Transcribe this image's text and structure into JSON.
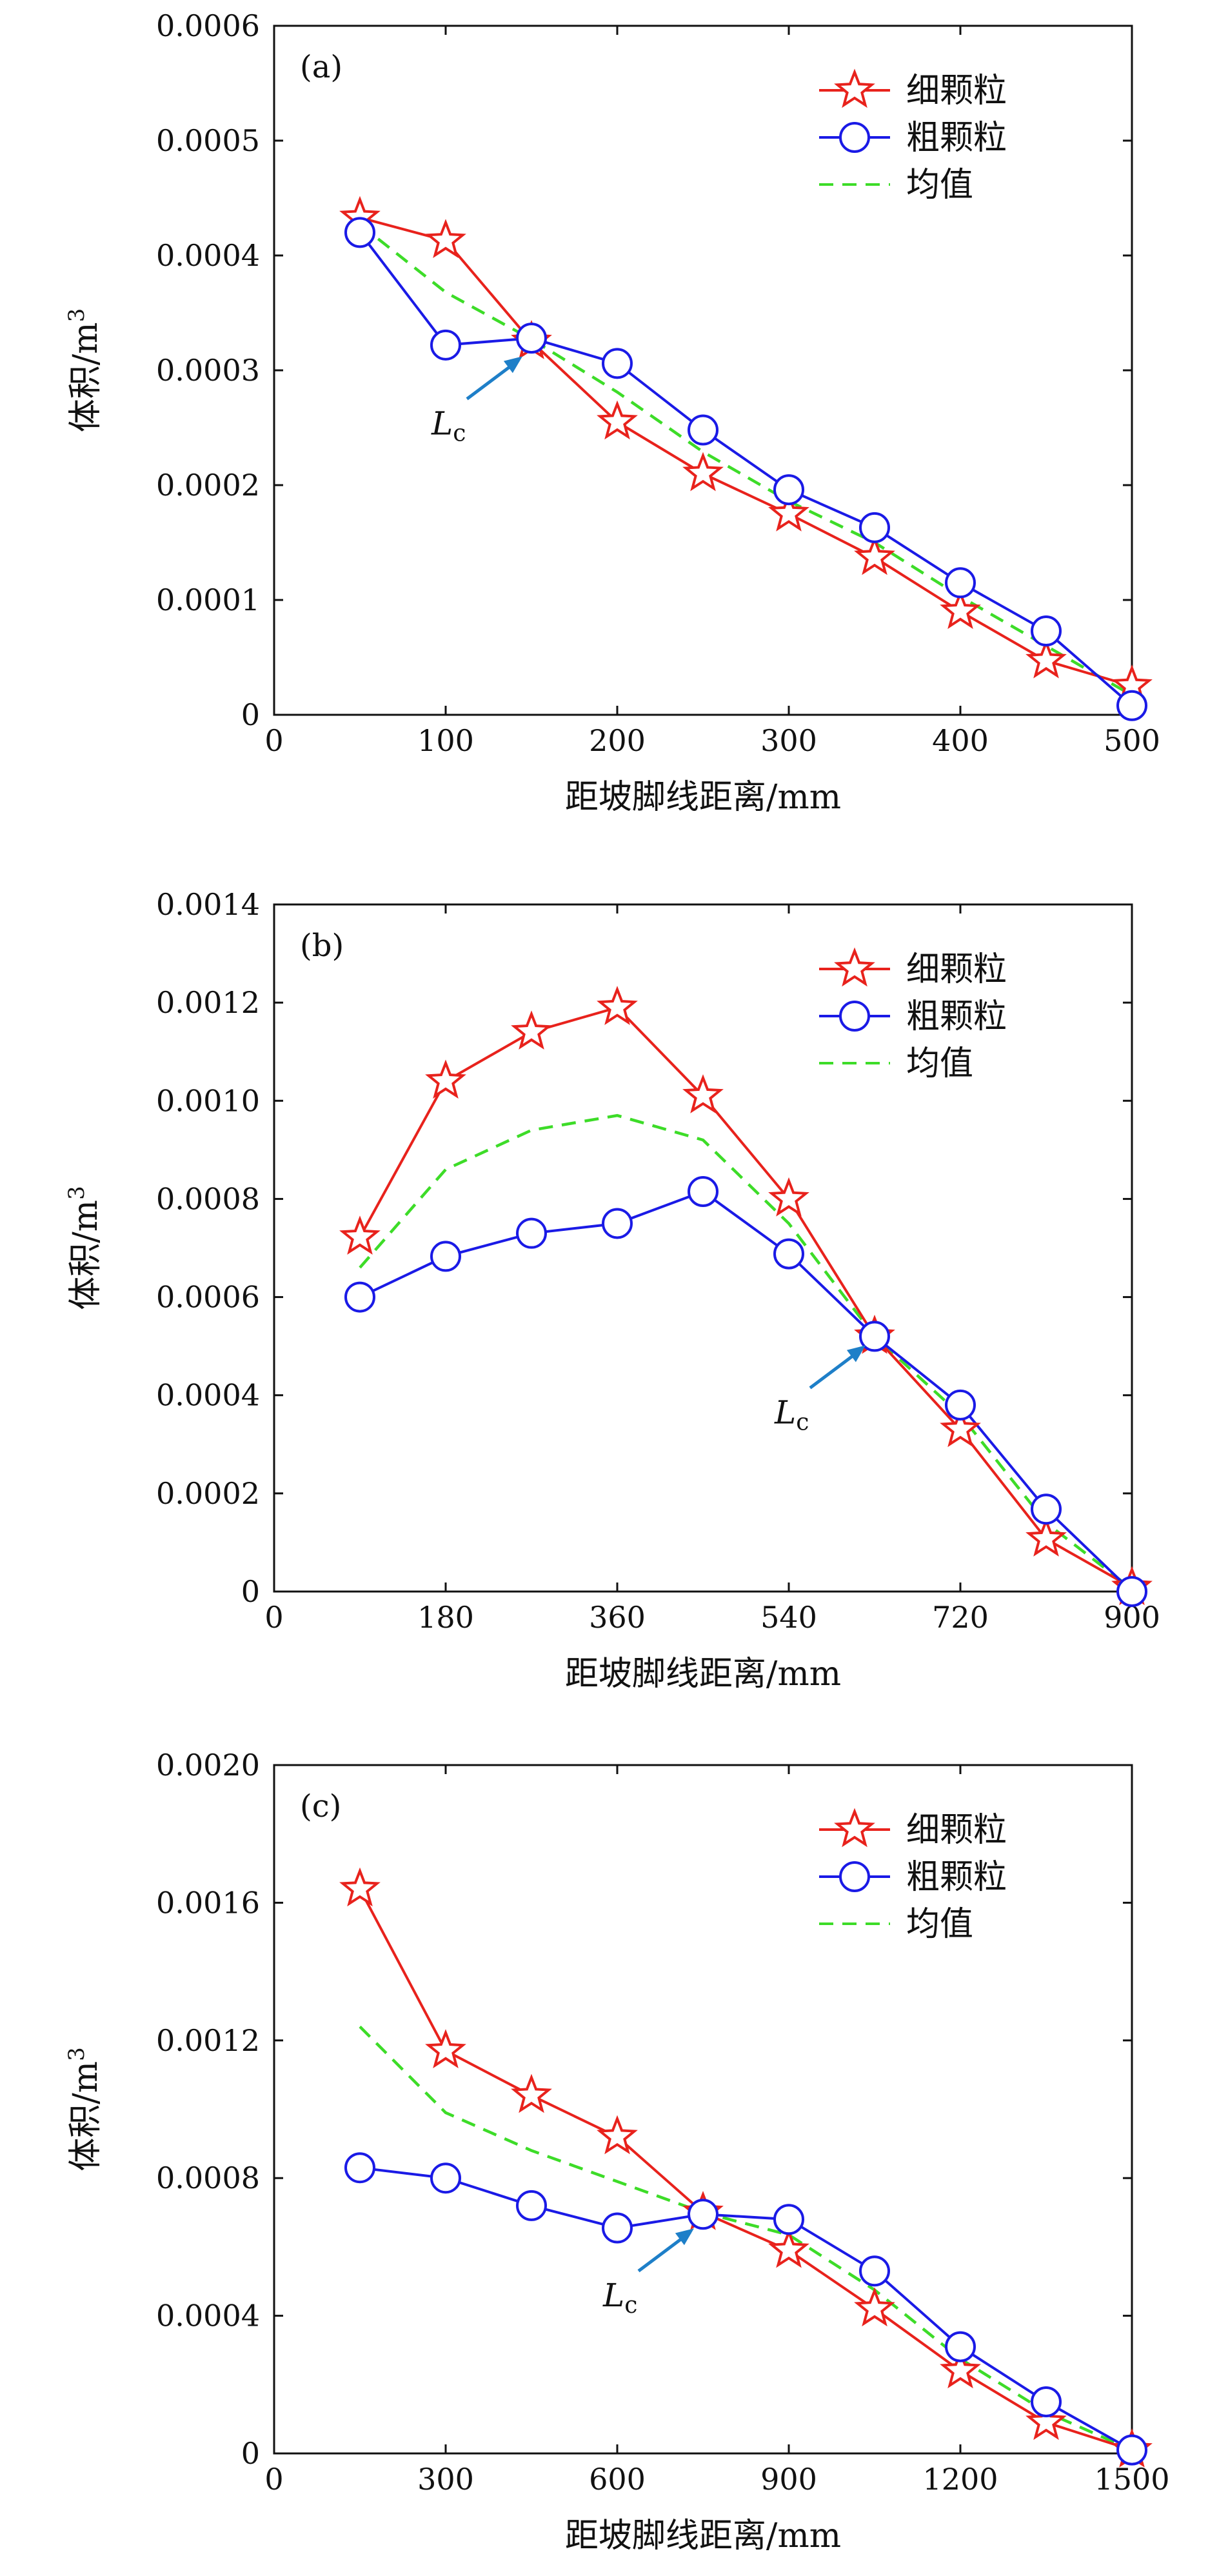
{
  "figure": {
    "charts": [
      {
        "panel_label": "(a)",
        "xlabel": "距坡脚线距离/mm",
        "ylabel": "体积/m",
        "ylabel_sup": "3",
        "xlim": [
          0,
          500
        ],
        "ylim": [
          0,
          0.0006
        ],
        "x_ticks": [
          0,
          100,
          200,
          300,
          400,
          500
        ],
        "x_tick_labels": [
          "0",
          "100",
          "200",
          "300",
          "400",
          "500"
        ],
        "y_ticks": [
          0,
          0.0001,
          0.0002,
          0.0003,
          0.0004,
          0.0005,
          0.0006
        ],
        "y_tick_labels": [
          "0",
          "0.0001",
          "0.0002",
          "0.0003",
          "0.0004",
          "0.0005",
          "0.0006"
        ],
        "annotation": {
          "text": "L",
          "sub": "c",
          "x": 150,
          "y": 0.00032
        }
      },
      {
        "panel_label": "(b)",
        "xlabel": "距坡脚线距离/mm",
        "ylabel": "体积/m",
        "ylabel_sup": "3",
        "xlim": [
          0,
          900
        ],
        "ylim": [
          0,
          0.0014
        ],
        "x_ticks": [
          0,
          180,
          360,
          540,
          720,
          900
        ],
        "x_tick_labels": [
          "0",
          "180",
          "360",
          "540",
          "720",
          "900"
        ],
        "y_ticks": [
          0,
          0.0002,
          0.0004,
          0.0006,
          0.0008,
          0.001,
          0.0012,
          0.0014
        ],
        "y_tick_labels": [
          "0",
          "0.0002",
          "0.0004",
          "0.0006",
          "0.0008",
          "0.0010",
          "0.0012",
          "0.0014"
        ],
        "annotation": {
          "text": "L",
          "sub": "c",
          "x": 630,
          "y": 0.00052
        }
      },
      {
        "panel_label": "(c)",
        "xlabel": "距坡脚线距离/mm",
        "ylabel": "体积/m",
        "ylabel_sup": "3",
        "xlim": [
          0,
          1500
        ],
        "ylim": [
          0,
          0.002
        ],
        "x_ticks": [
          0,
          300,
          600,
          900,
          1200,
          1500
        ],
        "x_tick_labels": [
          "0",
          "300",
          "600",
          "900",
          "1200",
          "1500"
        ],
        "y_ticks": [
          0,
          0.0004,
          0.0008,
          0.0012,
          0.0016,
          0.002
        ],
        "y_tick_labels": [
          "0",
          "0.0004",
          "0.0008",
          "0.0012",
          "0.0016",
          "0.0020"
        ],
        "annotation": {
          "text": "L",
          "sub": "c",
          "x": 750,
          "y": 0.00068
        }
      }
    ]
  },
  "chart_data": [
    {
      "type": "line",
      "series": [
        {
          "name": "细颗粒",
          "color": "#e8221c",
          "marker": "star",
          "dash": "solid",
          "x": [
            50,
            100,
            150,
            200,
            250,
            300,
            350,
            400,
            450,
            500
          ],
          "values": [
            0.000433,
            0.000413,
            0.000325,
            0.000255,
            0.00021,
            0.000175,
            0.000137,
            9e-05,
            4.7e-05,
            2.5e-05
          ]
        },
        {
          "name": "粗颗粒",
          "color": "#1a1ae6",
          "marker": "circle",
          "dash": "solid",
          "x": [
            50,
            100,
            150,
            200,
            250,
            300,
            350,
            400,
            450,
            500
          ],
          "values": [
            0.00042,
            0.000322,
            0.000328,
            0.000306,
            0.000248,
            0.000196,
            0.000163,
            0.000115,
            7.3e-05,
            8e-06
          ]
        },
        {
          "name": "均值",
          "color": "#3ddc28",
          "marker": "none",
          "dash": "dashed",
          "x": [
            50,
            100,
            150,
            200,
            250,
            300,
            350,
            400,
            450,
            500
          ],
          "values": [
            0.000427,
            0.000368,
            0.000327,
            0.000281,
            0.000229,
            0.000186,
            0.00015,
            0.000103,
            6e-05,
            1.7e-05
          ]
        }
      ]
    },
    {
      "type": "line",
      "series": [
        {
          "name": "细颗粒",
          "color": "#e8221c",
          "marker": "star",
          "dash": "solid",
          "x": [
            90,
            180,
            270,
            360,
            450,
            540,
            630,
            720,
            810,
            900
          ],
          "values": [
            0.000722,
            0.00104,
            0.00114,
            0.00119,
            0.00101,
            0.0008,
            0.00052,
            0.00033,
            0.000107,
            8e-06
          ]
        },
        {
          "name": "粗颗粒",
          "color": "#1a1ae6",
          "marker": "circle",
          "dash": "solid",
          "x": [
            90,
            180,
            270,
            360,
            450,
            540,
            630,
            720,
            810,
            900
          ],
          "values": [
            0.0006,
            0.000683,
            0.00073,
            0.00075,
            0.000815,
            0.000688,
            0.00052,
            0.00038,
            0.000168,
            0.0
          ]
        },
        {
          "name": "均值",
          "color": "#3ddc28",
          "marker": "none",
          "dash": "dashed",
          "x": [
            90,
            180,
            270,
            360,
            450,
            540,
            630,
            720,
            810,
            900
          ],
          "values": [
            0.00066,
            0.00086,
            0.00094,
            0.00097,
            0.00092,
            0.00075,
            0.00052,
            0.00036,
            0.00014,
            5e-06
          ]
        }
      ]
    },
    {
      "type": "line",
      "series": [
        {
          "name": "细颗粒",
          "color": "#e8221c",
          "marker": "star",
          "dash": "solid",
          "x": [
            150,
            300,
            450,
            600,
            750,
            900,
            1050,
            1200,
            1350,
            1500
          ],
          "values": [
            0.00164,
            0.00117,
            0.00104,
            0.00092,
            0.0007,
            0.00059,
            0.00042,
            0.00024,
            9e-05,
            1e-05
          ]
        },
        {
          "name": "粗颗粒",
          "color": "#1a1ae6",
          "marker": "circle",
          "dash": "solid",
          "x": [
            150,
            300,
            450,
            600,
            750,
            900,
            1050,
            1200,
            1350,
            1500
          ],
          "values": [
            0.00083,
            0.0008,
            0.00072,
            0.000655,
            0.000695,
            0.00068,
            0.00053,
            0.00031,
            0.00015,
            1e-05
          ]
        },
        {
          "name": "均值",
          "color": "#3ddc28",
          "marker": "none",
          "dash": "dashed",
          "x": [
            150,
            300,
            450,
            600,
            750,
            900,
            1050,
            1200,
            1350,
            1500
          ],
          "values": [
            0.00124,
            0.00099,
            0.00088,
            0.00079,
            0.0007,
            0.000635,
            0.000475,
            0.000275,
            0.00012,
            1e-05
          ]
        }
      ]
    }
  ]
}
